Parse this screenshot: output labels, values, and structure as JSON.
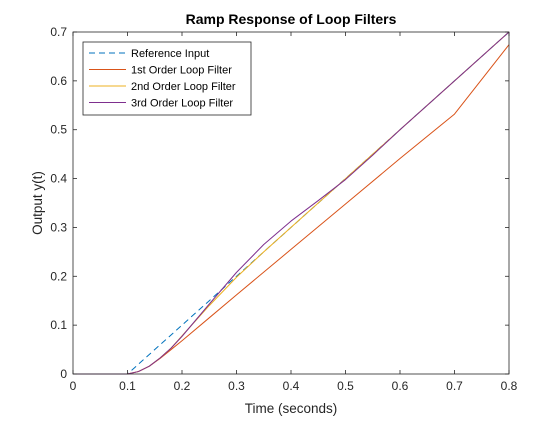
{
  "chart_data": {
    "type": "line",
    "title": "Ramp Response of Loop Filters",
    "xlabel": "Time (seconds)",
    "ylabel": "Output y(t)",
    "xlim": [
      0,
      0.8
    ],
    "ylim": [
      0,
      0.7
    ],
    "xticks": [
      0,
      0.1,
      0.2,
      0.3,
      0.4,
      0.5,
      0.6,
      0.7,
      0.8
    ],
    "xtick_labels": [
      "0",
      "0.1",
      "0.2",
      "0.3",
      "0.4",
      "0.5",
      "0.6",
      "0.7",
      "0.8"
    ],
    "yticks": [
      0,
      0.1,
      0.2,
      0.3,
      0.4,
      0.5,
      0.6,
      0.7
    ],
    "ytick_labels": [
      "0",
      "0.1",
      "0.2",
      "0.3",
      "0.4",
      "0.5",
      "0.6",
      "0.7"
    ],
    "grid": false,
    "legend_position": "top-left",
    "series": [
      {
        "name": "Reference Input",
        "color": "#0072BD",
        "dash": "dashed",
        "x": [
          0,
          0.1,
          0.8
        ],
        "y": [
          0,
          0,
          0.7
        ]
      },
      {
        "name": "1st Order Loop Filter",
        "color": "#D95319",
        "dash": "solid",
        "x": [
          0,
          0.1,
          0.12,
          0.14,
          0.16,
          0.18,
          0.2,
          0.25,
          0.3,
          0.4,
          0.5,
          0.6,
          0.7,
          0.8
        ],
        "y": [
          0,
          0,
          0.005,
          0.016,
          0.032,
          0.05,
          0.068,
          0.115,
          0.162,
          0.255,
          0.348,
          0.441,
          0.532,
          0.674
        ]
      },
      {
        "name": "2nd Order Loop Filter",
        "color": "#EDB120",
        "dash": "solid",
        "x": [
          0,
          0.1,
          0.12,
          0.14,
          0.16,
          0.18,
          0.2,
          0.25,
          0.3,
          0.35,
          0.4,
          0.5,
          0.6,
          0.7,
          0.8
        ],
        "y": [
          0,
          0,
          0.005,
          0.016,
          0.033,
          0.053,
          0.078,
          0.14,
          0.198,
          0.25,
          0.3,
          0.4,
          0.5,
          0.6,
          0.7
        ]
      },
      {
        "name": "3rd Order Loop Filter",
        "color": "#7E2F8E",
        "dash": "solid",
        "x": [
          0,
          0.1,
          0.12,
          0.14,
          0.16,
          0.18,
          0.2,
          0.25,
          0.3,
          0.35,
          0.4,
          0.45,
          0.5,
          0.55,
          0.6,
          0.7,
          0.8
        ],
        "y": [
          0,
          0,
          0.005,
          0.016,
          0.033,
          0.053,
          0.077,
          0.143,
          0.208,
          0.265,
          0.313,
          0.355,
          0.398,
          0.448,
          0.5,
          0.6,
          0.7
        ]
      }
    ]
  }
}
